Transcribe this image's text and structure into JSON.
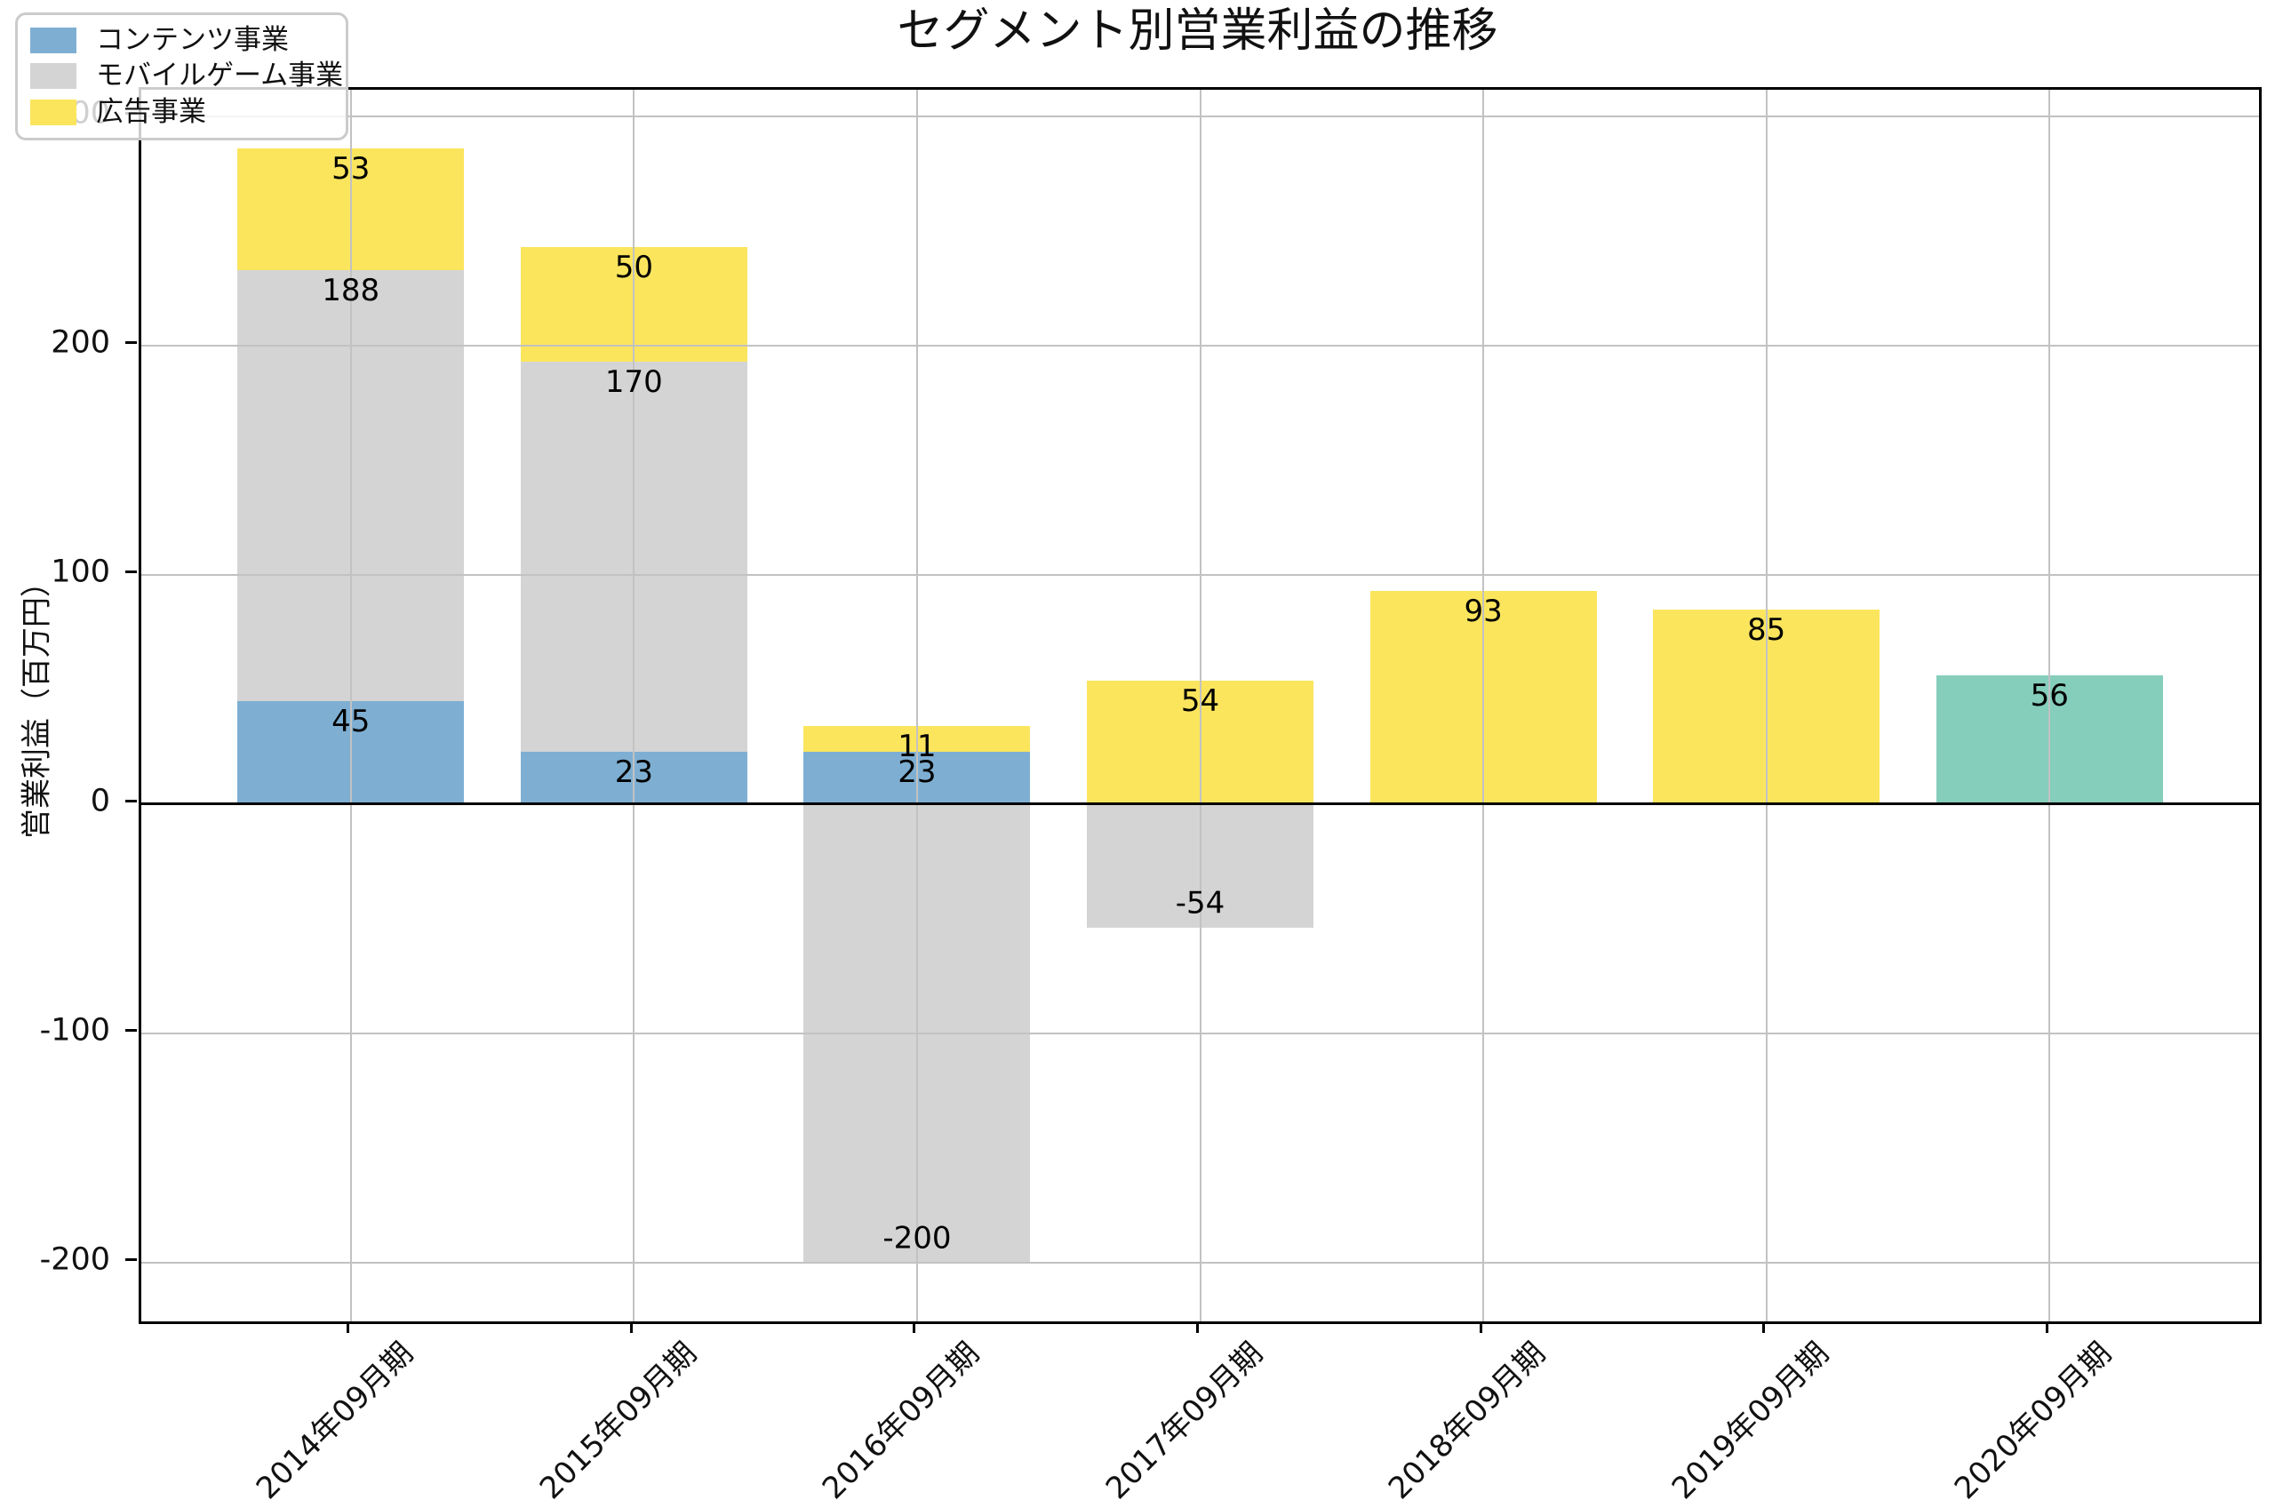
{
  "title": "セグメント別営業利益の推移",
  "y_axis": {
    "label": "営業利益（百万円）",
    "ticks": [
      300,
      200,
      100,
      0,
      -100,
      -200
    ]
  },
  "x_axis": {
    "labels": [
      "2014年09月期",
      "2015年09月期",
      "2016年09月期",
      "2017年09月期",
      "2018年09月期",
      "2019年09月期",
      "2020年09月期"
    ]
  },
  "legend": {
    "items": [
      {
        "label": "コンテンツ事業",
        "color": "#7eafd3"
      },
      {
        "label": "モバイルゲーム事業",
        "color": "#d4d4d4"
      },
      {
        "label": "広告事業",
        "color": "#fbe55d"
      }
    ]
  },
  "colors": {
    "grid": "#c2c2c2",
    "zero_line": "#000000",
    "unlisted_series": "#85cebc"
  },
  "chart_data": {
    "type": "bar",
    "stacked": true,
    "title": "セグメント別営業利益の推移",
    "xlabel": "",
    "ylabel": "営業利益（百万円）",
    "categories": [
      "2014年09月期",
      "2015年09月期",
      "2016年09月期",
      "2017年09月期",
      "2018年09月期",
      "2019年09月期",
      "2020年09月期"
    ],
    "series": [
      {
        "name": "コンテンツ事業",
        "color": "#7eafd3",
        "in_legend": true,
        "values": [
          45,
          23,
          23,
          null,
          null,
          null,
          null
        ]
      },
      {
        "name": "モバイルゲーム事業",
        "color": "#d4d4d4",
        "in_legend": true,
        "values": [
          188,
          170,
          -200,
          -54,
          null,
          null,
          null
        ]
      },
      {
        "name": "広告事業",
        "color": "#fbe55d",
        "in_legend": true,
        "values": [
          53,
          50,
          11,
          54,
          93,
          85,
          null
        ]
      },
      {
        "name": "",
        "color": "#85cebc",
        "in_legend": false,
        "values": [
          null,
          null,
          null,
          null,
          null,
          null,
          56
        ]
      }
    ],
    "bar_value_labels": [
      {
        "category": "2014年09月期",
        "labels": [
          "45",
          "188",
          "53"
        ]
      },
      {
        "category": "2015年09月期",
        "labels": [
          "23",
          "170",
          "50"
        ]
      },
      {
        "category": "2016年09月期",
        "labels": [
          "23",
          "-200",
          "11"
        ]
      },
      {
        "category": "2017年09月期",
        "labels": [
          "-54",
          "54"
        ]
      },
      {
        "category": "2018年09月期",
        "labels": [
          "93"
        ]
      },
      {
        "category": "2019年09月期",
        "labels": [
          "85"
        ]
      },
      {
        "category": "2020年09月期",
        "labels": [
          "56"
        ]
      }
    ],
    "ylim": [
      -225.6,
      311.6
    ],
    "ytick_values": [
      300,
      200,
      100,
      0,
      -100,
      -200
    ],
    "grid": true,
    "grid_above_bars": true,
    "zero_line": true,
    "legend_position": "upper left"
  }
}
